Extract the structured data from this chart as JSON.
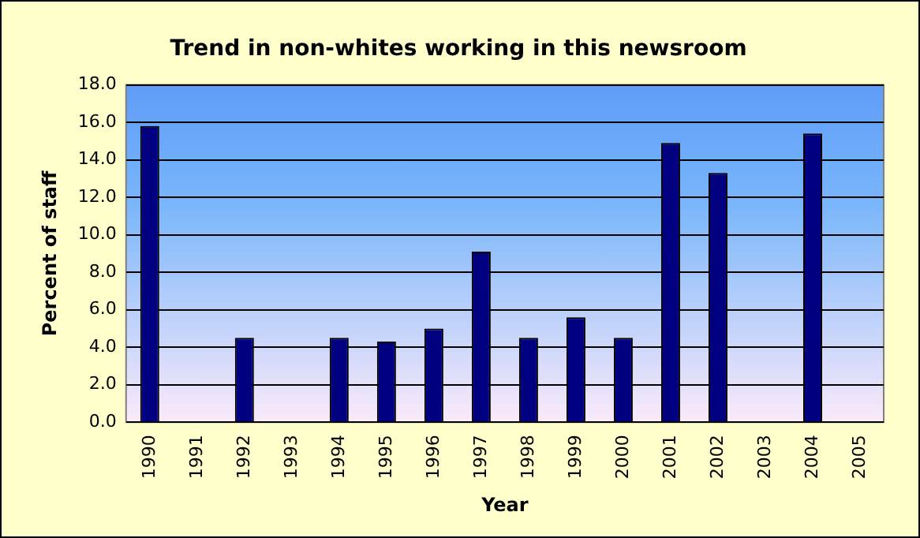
{
  "chart_data": {
    "type": "bar",
    "title": "Trend in non-whites working in this newsroom",
    "xlabel": "Year",
    "ylabel": "Percent of staff",
    "categories": [
      "1990",
      "1991",
      "1992",
      "1993",
      "1994",
      "1995",
      "1996",
      "1997",
      "1998",
      "1999",
      "2000",
      "2001",
      "2002",
      "2003",
      "2004",
      "2005"
    ],
    "values": [
      15.8,
      null,
      4.5,
      null,
      4.5,
      4.3,
      5.0,
      9.1,
      4.5,
      5.6,
      4.5,
      14.9,
      13.3,
      null,
      15.4,
      null
    ],
    "color": "#000080",
    "ylim": [
      0,
      18
    ],
    "yticks": [
      {
        "value": 0,
        "label": "0.0"
      },
      {
        "value": 2,
        "label": "2.0"
      },
      {
        "value": 4,
        "label": "4.0"
      },
      {
        "value": 6,
        "label": "6.0"
      },
      {
        "value": 8,
        "label": "8.0"
      },
      {
        "value": 10,
        "label": "10.0"
      },
      {
        "value": 12,
        "label": "12.0"
      },
      {
        "value": 14,
        "label": "14.0"
      },
      {
        "value": 16,
        "label": "16.0"
      },
      {
        "value": 18,
        "label": "18.0"
      }
    ],
    "grid": "y",
    "legend": false
  }
}
